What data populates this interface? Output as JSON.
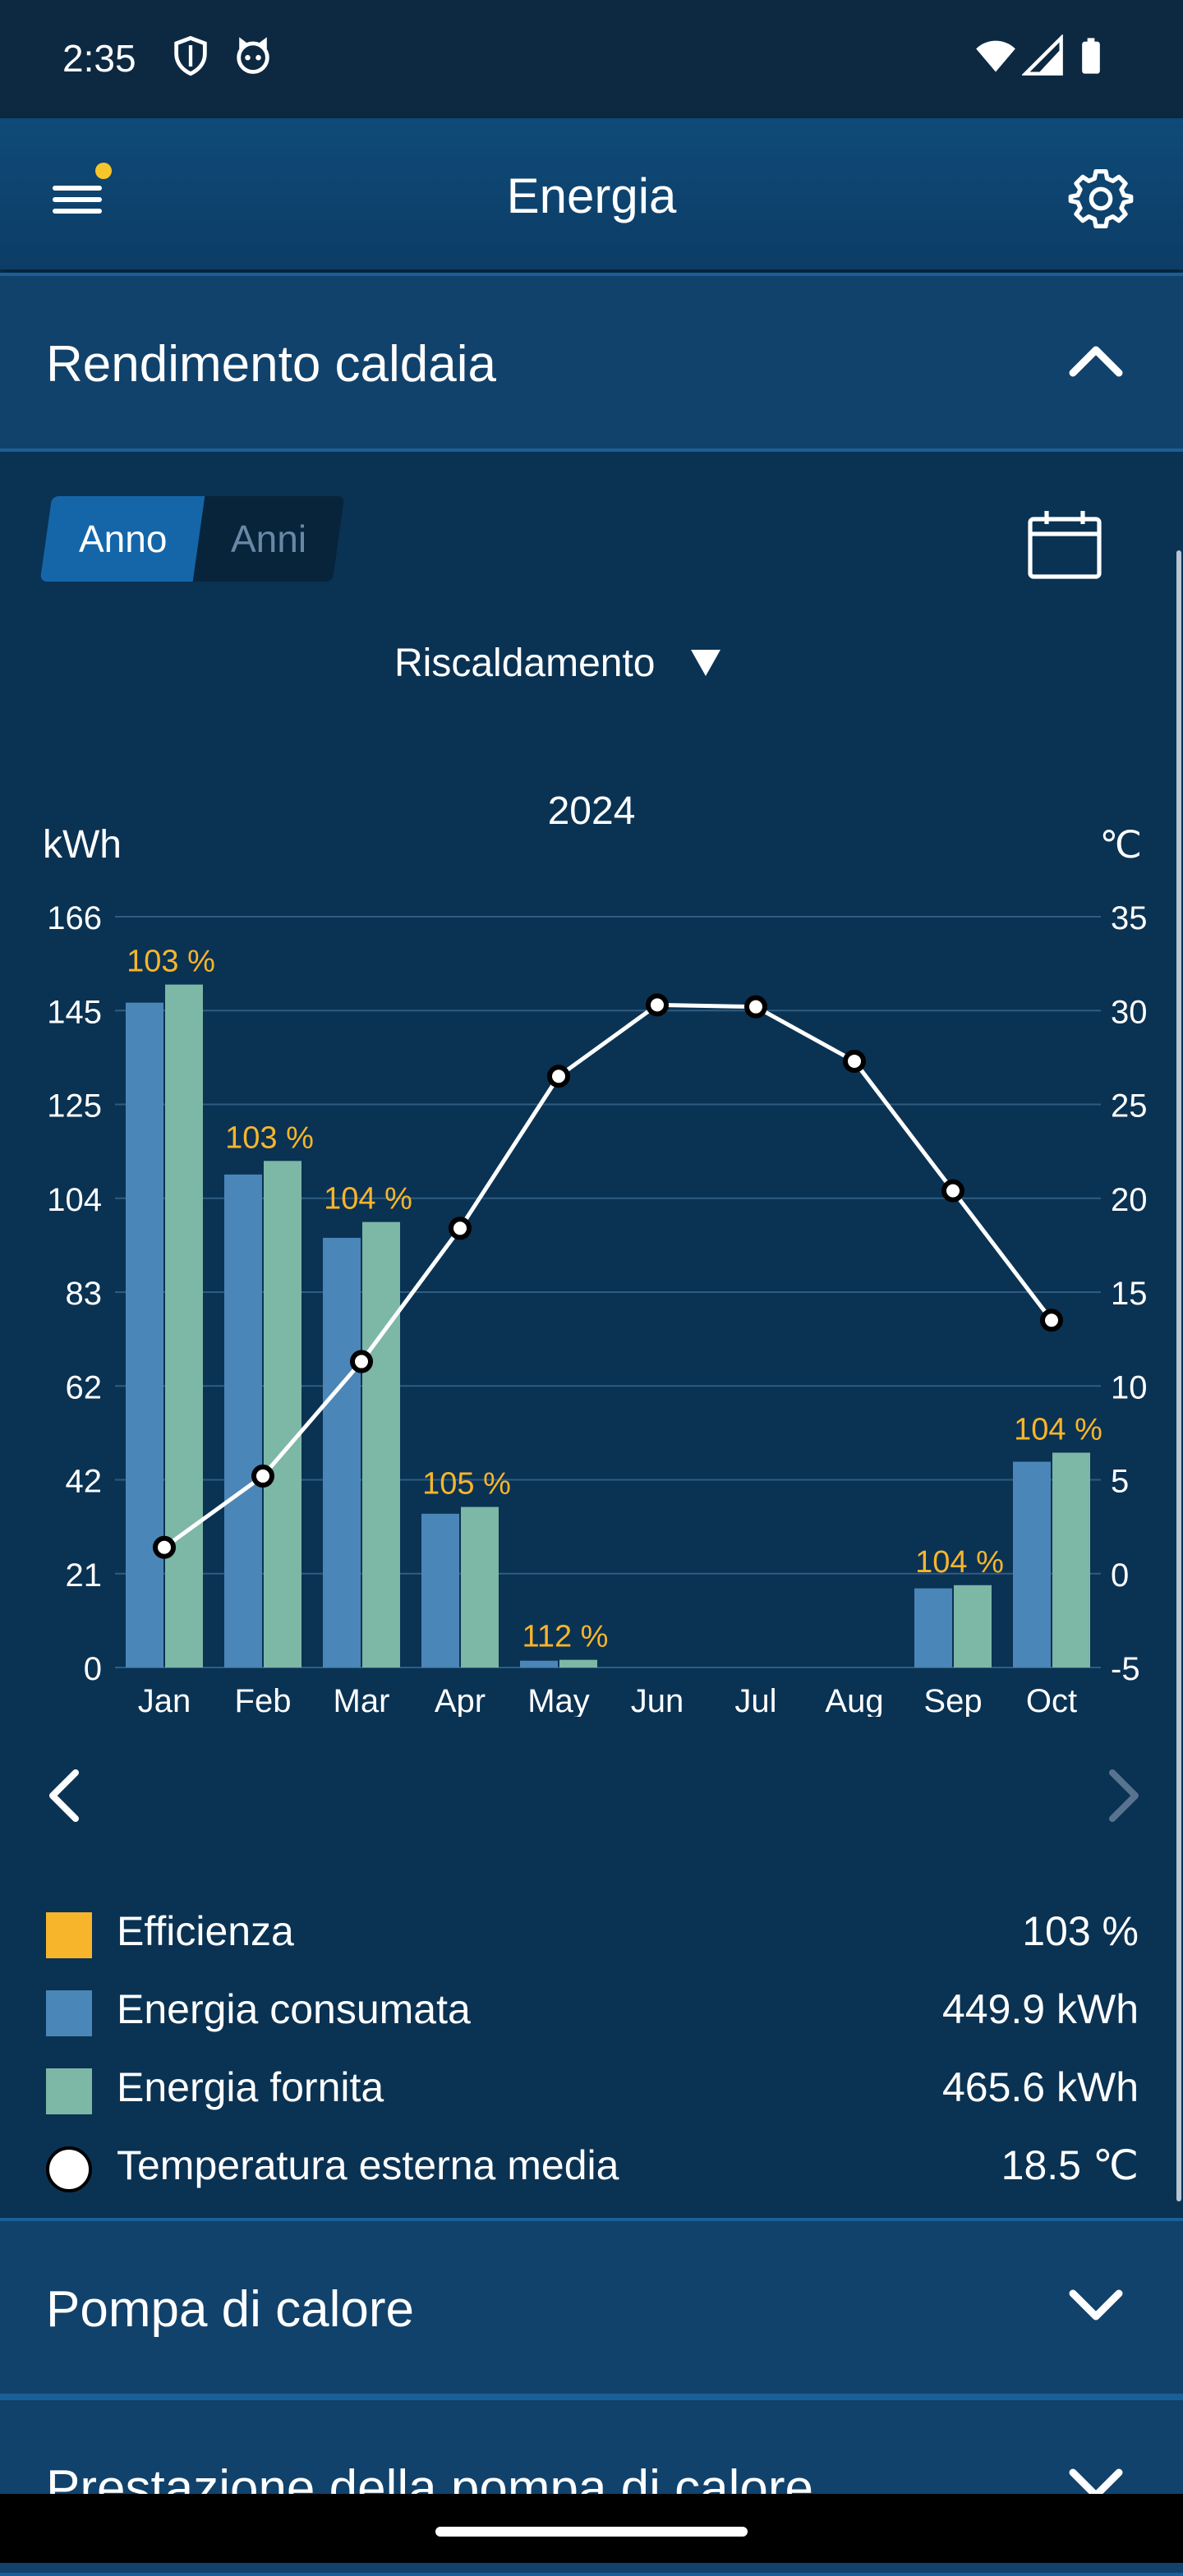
{
  "status_bar": {
    "time": "2:35",
    "icons": [
      "shield-icon",
      "cat-icon",
      "wifi-icon",
      "signal-icon",
      "battery-icon"
    ]
  },
  "app_bar": {
    "title": "Energia",
    "notification_dot_color": "#f7c52c",
    "left_icon": "menu-icon",
    "right_icon": "gear-icon"
  },
  "section_boiler": {
    "title": "Rendimento caldaia",
    "expanded": true,
    "segmented": {
      "options": [
        "Anno",
        "Anni"
      ],
      "selected": "Anno"
    },
    "dropdown": {
      "value": "Riscaldamento"
    },
    "year": "2024"
  },
  "chart_data": {
    "type": "bar",
    "year": "2024",
    "categories": [
      "Jan",
      "Feb",
      "Mar",
      "Apr",
      "May",
      "Jun",
      "Jul",
      "Aug",
      "Sep",
      "Oct"
    ],
    "y_left_label": "kWh",
    "y_right_label": "℃",
    "y_left_ticks": [
      "166",
      "145",
      "125",
      "104",
      "83",
      "62",
      "42",
      "21",
      "0"
    ],
    "y_right_ticks": [
      "35",
      "30",
      "25",
      "20",
      "15",
      "10",
      "5",
      "0",
      "-5"
    ],
    "ylim_left": [
      0,
      166
    ],
    "ylim_right": [
      -5,
      35
    ],
    "series": [
      {
        "name": "Energia consumata",
        "color": "#4b86b8",
        "values": [
          147,
          109,
          95,
          34,
          1.5,
          0,
          0,
          0,
          17.5,
          45.5
        ]
      },
      {
        "name": "Energia fornita",
        "color": "#7db7a6",
        "values": [
          151,
          112,
          98.5,
          35.5,
          1.7,
          0,
          0,
          0,
          18.2,
          47.5
        ]
      }
    ],
    "efficiency_labels": [
      "103 %",
      "103 %",
      "104 %",
      "105 %",
      "112 %",
      "",
      "",
      "",
      "104 %",
      "104 %"
    ],
    "efficiency_color": "#f7b52c",
    "line": {
      "name": "Temperatura esterna media",
      "values": [
        1.4,
        5.2,
        11.3,
        18.4,
        26.5,
        30.3,
        30.2,
        27.3,
        20.4,
        13.5
      ]
    },
    "grid": true
  },
  "legend": [
    {
      "label": "Efficienza",
      "value": "103 %",
      "color": "#f7b52c",
      "shape": "square"
    },
    {
      "label": "Energia consumata",
      "value": "449.9 kWh",
      "color": "#4b86b8",
      "shape": "square"
    },
    {
      "label": "Energia fornita",
      "value": "465.6 kWh",
      "color": "#7db7a6",
      "shape": "square"
    },
    {
      "label": "Temperatura esterna media",
      "value": "18.5 ℃",
      "color": "#ffffff",
      "shape": "circle"
    }
  ],
  "section_heat_pump": {
    "title": "Pompa di calore",
    "expanded": false
  },
  "section_heat_pump_performance": {
    "title": "Prestazione della pompa di calore",
    "expanded": false
  }
}
